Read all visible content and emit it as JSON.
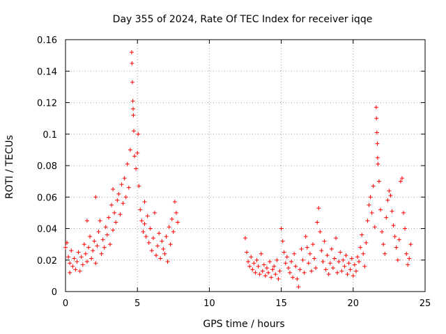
{
  "chart_data": {
    "type": "scatter",
    "title": "Day 355 of 2024, Rate Of TEC Index for receiver iqqe",
    "xlabel": "GPS time / hours",
    "ylabel": "ROTI / TECUs",
    "xlim": [
      0,
      25
    ],
    "ylim": [
      0,
      0.16
    ],
    "xticks": [
      0,
      5,
      10,
      15,
      20,
      25
    ],
    "xtick_labels": [
      "0",
      "5",
      "10",
      "15",
      "20",
      "25"
    ],
    "yticks": [
      0,
      0.02,
      0.04,
      0.06,
      0.08,
      0.1,
      0.12,
      0.14,
      0.16
    ],
    "ytick_labels": [
      "0",
      "0.02",
      "0.04",
      "0.06",
      "0.08",
      "0.1",
      "0.12",
      "0.14",
      "0.16"
    ],
    "grid": true,
    "marker": "plus",
    "color": "#ff0000",
    "series": [
      {
        "name": "ROTI",
        "points": [
          [
            0.0,
            0.028
          ],
          [
            0.1,
            0.031
          ],
          [
            0.2,
            0.022
          ],
          [
            0.3,
            0.018
          ],
          [
            0.4,
            0.026
          ],
          [
            0.5,
            0.016
          ],
          [
            0.6,
            0.021
          ],
          [
            0.7,
            0.014
          ],
          [
            0.8,
            0.019
          ],
          [
            0.9,
            0.025
          ],
          [
            1.0,
            0.013
          ],
          [
            1.1,
            0.022
          ],
          [
            1.2,
            0.017
          ],
          [
            1.3,
            0.03
          ],
          [
            1.4,
            0.024
          ],
          [
            1.5,
            0.019
          ],
          [
            1.6,
            0.028
          ],
          [
            1.7,
            0.035
          ],
          [
            1.8,
            0.021
          ],
          [
            1.9,
            0.026
          ],
          [
            2.0,
            0.032
          ],
          [
            2.1,
            0.018
          ],
          [
            2.2,
            0.029
          ],
          [
            2.3,
            0.038
          ],
          [
            2.4,
            0.045
          ],
          [
            2.5,
            0.024
          ],
          [
            2.6,
            0.033
          ],
          [
            2.7,
            0.028
          ],
          [
            2.8,
            0.041
          ],
          [
            2.9,
            0.036
          ],
          [
            3.0,
            0.047
          ],
          [
            3.1,
            0.03
          ],
          [
            3.2,
            0.055
          ],
          [
            3.3,
            0.039
          ],
          [
            3.4,
            0.05
          ],
          [
            3.5,
            0.044
          ],
          [
            3.6,
            0.058
          ],
          [
            3.7,
            0.062
          ],
          [
            3.8,
            0.049
          ],
          [
            3.9,
            0.068
          ],
          [
            4.0,
            0.056
          ],
          [
            4.1,
            0.072
          ],
          [
            4.2,
            0.06
          ],
          [
            4.3,
            0.081
          ],
          [
            4.4,
            0.066
          ],
          [
            4.5,
            0.09
          ],
          [
            4.6,
            0.152
          ],
          [
            4.62,
            0.145
          ],
          [
            4.65,
            0.133
          ],
          [
            4.68,
            0.121
          ],
          [
            4.7,
            0.116
          ],
          [
            4.72,
            0.112
          ],
          [
            4.75,
            0.102
          ],
          [
            4.8,
            0.086
          ],
          [
            4.9,
            0.078
          ],
          [
            5.0,
            0.088
          ],
          [
            5.05,
            0.1
          ],
          [
            5.1,
            0.067
          ],
          [
            5.2,
            0.052
          ],
          [
            5.3,
            0.045
          ],
          [
            5.4,
            0.038
          ],
          [
            5.5,
            0.043
          ],
          [
            5.6,
            0.035
          ],
          [
            5.7,
            0.048
          ],
          [
            5.8,
            0.031
          ],
          [
            5.9,
            0.04
          ],
          [
            6.0,
            0.026
          ],
          [
            6.1,
            0.034
          ],
          [
            6.2,
            0.05
          ],
          [
            6.3,
            0.023
          ],
          [
            6.4,
            0.029
          ],
          [
            6.5,
            0.037
          ],
          [
            6.6,
            0.021
          ],
          [
            6.7,
            0.032
          ],
          [
            6.8,
            0.027
          ],
          [
            6.9,
            0.024
          ],
          [
            7.0,
            0.035
          ],
          [
            7.1,
            0.019
          ],
          [
            7.2,
            0.041
          ],
          [
            7.3,
            0.03
          ],
          [
            7.4,
            0.046
          ],
          [
            7.5,
            0.038
          ],
          [
            7.6,
            0.057
          ],
          [
            7.7,
            0.05
          ],
          [
            7.8,
            0.044
          ],
          [
            0.3,
            0.012
          ],
          [
            1.5,
            0.045
          ],
          [
            2.1,
            0.06
          ],
          [
            3.3,
            0.065
          ],
          [
            5.5,
            0.057
          ],
          [
            12.5,
            0.034
          ],
          [
            12.6,
            0.025
          ],
          [
            12.7,
            0.019
          ],
          [
            12.8,
            0.016
          ],
          [
            12.9,
            0.022
          ],
          [
            13.0,
            0.014
          ],
          [
            13.1,
            0.018
          ],
          [
            13.2,
            0.012
          ],
          [
            13.3,
            0.02
          ],
          [
            13.4,
            0.016
          ],
          [
            13.5,
            0.011
          ],
          [
            13.6,
            0.024
          ],
          [
            13.7,
            0.013
          ],
          [
            13.8,
            0.017
          ],
          [
            13.9,
            0.01
          ],
          [
            14.0,
            0.015
          ],
          [
            14.1,
            0.012
          ],
          [
            14.2,
            0.019
          ],
          [
            14.3,
            0.009
          ],
          [
            14.4,
            0.014
          ],
          [
            14.5,
            0.016
          ],
          [
            14.6,
            0.011
          ],
          [
            14.7,
            0.02
          ],
          [
            14.8,
            0.008
          ],
          [
            14.9,
            0.013
          ],
          [
            15.0,
            0.04
          ],
          [
            15.1,
            0.032
          ],
          [
            15.2,
            0.025
          ],
          [
            15.3,
            0.018
          ],
          [
            15.4,
            0.022
          ],
          [
            15.5,
            0.015
          ],
          [
            15.6,
            0.012
          ],
          [
            15.7,
            0.019
          ],
          [
            15.8,
            0.009
          ],
          [
            15.9,
            0.024
          ],
          [
            16.0,
            0.016
          ],
          [
            16.1,
            0.008
          ],
          [
            16.2,
            0.003
          ],
          [
            16.3,
            0.014
          ],
          [
            16.4,
            0.027
          ],
          [
            16.5,
            0.02
          ],
          [
            16.6,
            0.012
          ],
          [
            16.7,
            0.035
          ],
          [
            16.8,
            0.028
          ],
          [
            16.9,
            0.018
          ],
          [
            17.0,
            0.024
          ],
          [
            17.1,
            0.013
          ],
          [
            17.2,
            0.03
          ],
          [
            17.3,
            0.021
          ],
          [
            17.4,
            0.015
          ],
          [
            17.5,
            0.044
          ],
          [
            17.6,
            0.053
          ],
          [
            17.7,
            0.038
          ],
          [
            17.8,
            0.026
          ],
          [
            17.9,
            0.019
          ],
          [
            18.0,
            0.032
          ],
          [
            18.1,
            0.014
          ],
          [
            18.2,
            0.023
          ],
          [
            18.3,
            0.011
          ],
          [
            18.4,
            0.018
          ],
          [
            18.5,
            0.027
          ],
          [
            18.6,
            0.015
          ],
          [
            18.7,
            0.021
          ],
          [
            18.8,
            0.034
          ],
          [
            18.9,
            0.012
          ],
          [
            19.0,
            0.019
          ],
          [
            19.1,
            0.025
          ],
          [
            19.2,
            0.013
          ],
          [
            19.3,
            0.02
          ],
          [
            19.4,
            0.016
          ],
          [
            19.5,
            0.023
          ],
          [
            19.6,
            0.011
          ],
          [
            19.7,
            0.018
          ],
          [
            19.8,
            0.014
          ],
          [
            19.9,
            0.021
          ],
          [
            20.0,
            0.01
          ],
          [
            20.1,
            0.017
          ],
          [
            20.2,
            0.013
          ],
          [
            20.3,
            0.022
          ],
          [
            20.4,
            0.019
          ],
          [
            20.5,
            0.028
          ],
          [
            20.6,
            0.036
          ],
          [
            20.7,
            0.024
          ],
          [
            20.8,
            0.016
          ],
          [
            20.9,
            0.031
          ],
          [
            21.0,
            0.045
          ],
          [
            21.1,
            0.055
          ],
          [
            21.2,
            0.06
          ],
          [
            21.3,
            0.05
          ],
          [
            21.4,
            0.067
          ],
          [
            21.5,
            0.041
          ],
          [
            21.6,
            0.117
          ],
          [
            21.62,
            0.11
          ],
          [
            21.65,
            0.101
          ],
          [
            21.68,
            0.094
          ],
          [
            21.7,
            0.085
          ],
          [
            21.72,
            0.081
          ],
          [
            21.8,
            0.07
          ],
          [
            21.9,
            0.052
          ],
          [
            22.0,
            0.038
          ],
          [
            22.1,
            0.03
          ],
          [
            22.2,
            0.024
          ],
          [
            22.3,
            0.047
          ],
          [
            22.4,
            0.058
          ],
          [
            22.5,
            0.064
          ],
          [
            22.6,
            0.061
          ],
          [
            22.7,
            0.051
          ],
          [
            22.8,
            0.042
          ],
          [
            22.9,
            0.035
          ],
          [
            23.0,
            0.028
          ],
          [
            23.1,
            0.02
          ],
          [
            23.2,
            0.033
          ],
          [
            23.3,
            0.07
          ],
          [
            23.4,
            0.072
          ],
          [
            23.5,
            0.05
          ],
          [
            23.6,
            0.04
          ],
          [
            23.7,
            0.024
          ],
          [
            23.8,
            0.017
          ],
          [
            23.9,
            0.021
          ],
          [
            24.0,
            0.03
          ]
        ]
      }
    ]
  }
}
